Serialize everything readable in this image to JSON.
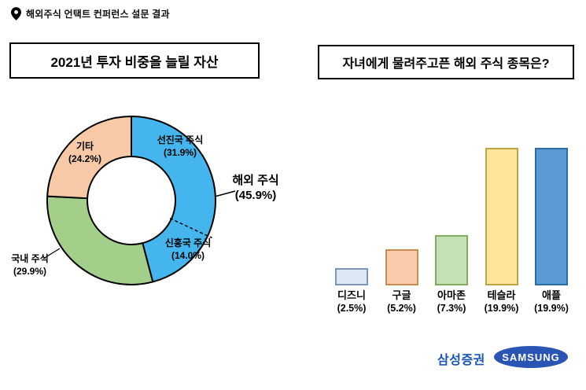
{
  "header": {
    "title": "해외주식 언택트 컨퍼런스 설문 결과"
  },
  "footer": {
    "brand": "삼성증권",
    "logo": "SAMSUNG"
  },
  "chart_data": [
    {
      "type": "pie",
      "title": "2021년 투자 비중을 늘릴 자산",
      "donut": true,
      "start": "top",
      "direction": "clockwise",
      "slices": [
        {
          "label": "선진국 주식",
          "value": 31.9,
          "color": "#44b6ed",
          "group": "해외 주식"
        },
        {
          "label": "신흥국 주식",
          "value": 14.0,
          "color": "#44b6ed",
          "group": "해외 주식"
        },
        {
          "label": "국내 주식",
          "value": 29.9,
          "color": "#a3cf8a"
        },
        {
          "label": "기타",
          "value": 24.2,
          "color": "#f7c9a6"
        }
      ],
      "group_annotation": {
        "label": "해외 주식",
        "value": 45.9
      }
    },
    {
      "type": "bar",
      "title": "자녀에게 물려주고픈 해외 주식 종목은?",
      "categories": [
        "디즈니",
        "구글",
        "아마존",
        "테슬라",
        "애플"
      ],
      "values": [
        2.5,
        5.2,
        7.3,
        19.9,
        19.9
      ],
      "value_suffix": "%",
      "bar_colors": [
        "#dde6f3",
        "#f8cbad",
        "#c5e0b4",
        "#ffe599",
        "#5b9bd5"
      ],
      "bar_borders": [
        "#7d94bb",
        "#c98a55",
        "#82ab64",
        "#bfa443",
        "#2e6da4"
      ]
    }
  ]
}
